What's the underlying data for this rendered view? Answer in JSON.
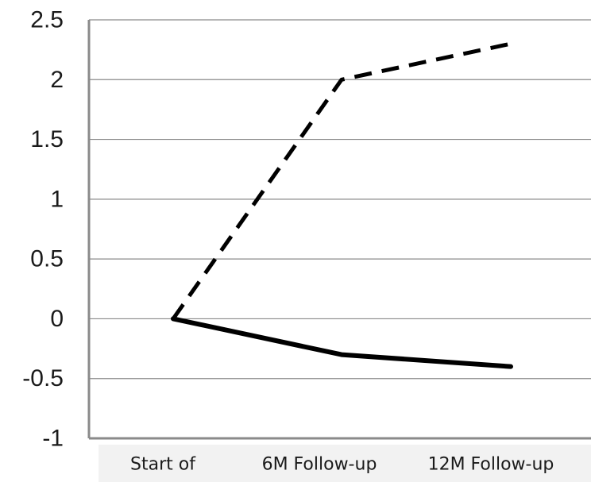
{
  "chart_data": {
    "type": "line",
    "title": "",
    "xlabel": "",
    "ylabel": "",
    "categories": [
      "Start of",
      "6M Follow-up",
      "12M Follow-up"
    ],
    "ylim": [
      -1,
      2.5
    ],
    "yticks": [
      2.5,
      2,
      1.5,
      1,
      0.5,
      0,
      -0.5,
      -1
    ],
    "ytick_labels": [
      "2.5",
      "2",
      "1.5",
      "1",
      "0.5",
      "0",
      "-0.5",
      "-1"
    ],
    "grid": true,
    "legend": "none",
    "series": [
      {
        "values": [
          0,
          2.0,
          2.3
        ],
        "style": "dashed",
        "color": "#000000"
      },
      {
        "values": [
          0,
          -0.3,
          -0.4
        ],
        "style": "solid",
        "color": "#000000"
      }
    ]
  }
}
